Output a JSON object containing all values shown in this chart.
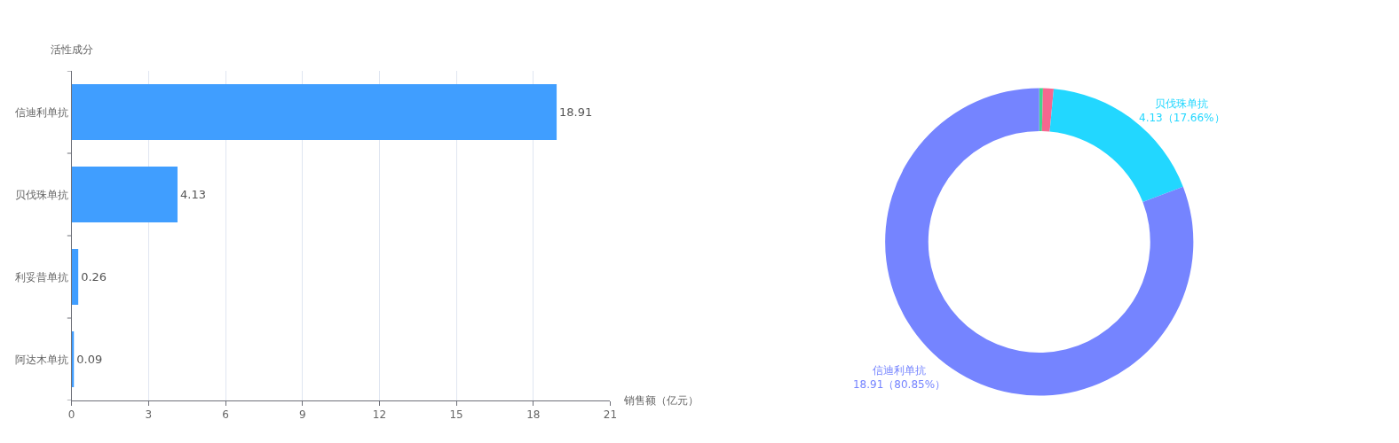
{
  "chart_data": [
    {
      "type": "bar",
      "orientation": "horizontal",
      "ylabel": "活性成分",
      "xlabel": "销售额（亿元）",
      "categories": [
        "信迪利单抗",
        "贝伐珠单抗",
        "利妥昔单抗",
        "阿达木单抗"
      ],
      "values": [
        18.91,
        4.13,
        0.26,
        0.09
      ],
      "color": "#409eff",
      "xlim": [
        0,
        21
      ],
      "xticks": [
        0,
        3,
        6,
        9,
        12,
        15,
        18,
        21
      ],
      "grid": "x",
      "data_labels": true
    },
    {
      "type": "donut",
      "categories": [
        null,
        null,
        "贝伐珠单抗",
        "信迪利单抗"
      ],
      "values": [
        0.09,
        0.26,
        4.13,
        18.91
      ],
      "colors": [
        "#3fd68f",
        "#f5678f",
        "#22d7ff",
        "#7584ff"
      ],
      "value_labels": [
        null,
        null,
        "4.13（17.66%）",
        "18.91（80.85%）"
      ]
    }
  ]
}
